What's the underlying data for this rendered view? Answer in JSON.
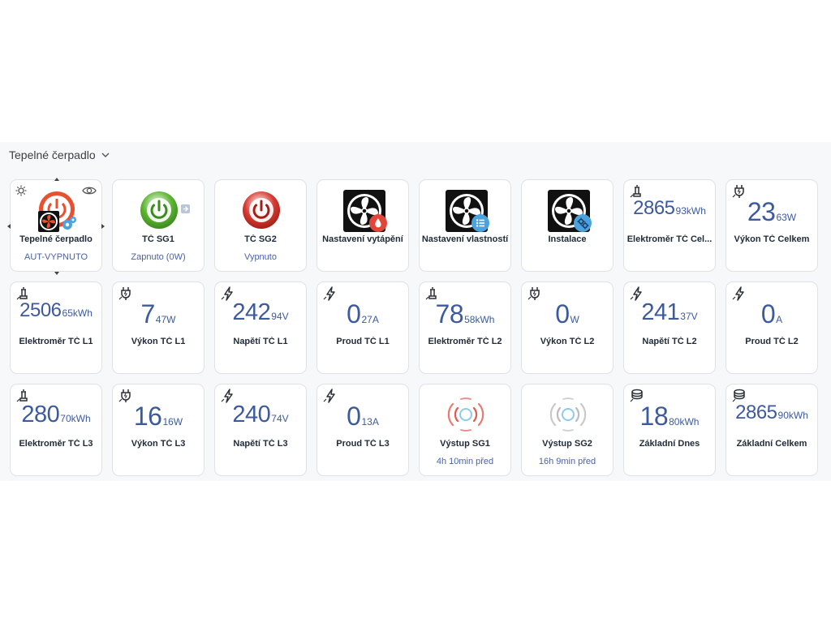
{
  "section": {
    "title": "Tepelné čerpadlo"
  },
  "colors": {
    "value": "#3d5a9e",
    "status": "#4a63a8",
    "label": "#1f2a37",
    "card_border": "#dfe2e7",
    "power_green": "#5cb531",
    "power_red": "#d73a32",
    "signal_red": "#e05b4e",
    "signal_grey": "#b9bcc1",
    "badge_blue": "#4aa3df"
  },
  "cards": [
    {
      "id": "heat-pump",
      "label": "Tepelné čerpadlo",
      "status": "AUT-VYPNUTO",
      "type": "device",
      "icon": "heat-pump-fan-icon"
    },
    {
      "id": "tc-sg1",
      "label": "TČ SG1",
      "status": "Zapnuto (0W)",
      "type": "power",
      "icon": "power-on-icon"
    },
    {
      "id": "tc-sg2",
      "label": "TČ SG2",
      "status": "Vypnuto",
      "type": "power",
      "icon": "power-off-icon"
    },
    {
      "id": "nastaveni-vytapeni",
      "label": "Nastavení vytápění",
      "type": "fan",
      "icon": "fan-heating-icon"
    },
    {
      "id": "nastaveni-vlastnosti",
      "label": "Nastavení vlastností",
      "type": "fan",
      "icon": "fan-list-icon"
    },
    {
      "id": "instalace",
      "label": "Instalace",
      "type": "fan",
      "icon": "fan-gear-icon"
    },
    {
      "id": "elektromer-tc-celkem",
      "label": "Elektroměr TČ Cel...",
      "big": "2865",
      "small": "93kWh",
      "icon": "meter-icon"
    },
    {
      "id": "vykon-tc-celkem",
      "label": "Výkon TČ Celkem",
      "big": "23",
      "small": "63W",
      "icon": "plug-icon"
    },
    {
      "id": "elektromer-tc-l1",
      "label": "Elektroměr TČ L1",
      "big": "2506",
      "small": "65kWh",
      "icon": "meter-icon"
    },
    {
      "id": "vykon-tc-l1",
      "label": "Výkon TČ L1",
      "big": "7",
      "small": "47W",
      "icon": "plug-icon"
    },
    {
      "id": "napeti-tc-l1",
      "label": "Napětí TČ L1",
      "big": "242",
      "small": "94V",
      "icon": "bolt-icon"
    },
    {
      "id": "proud-tc-l1",
      "label": "Proud TČ L1",
      "big": "0",
      "small": "27A",
      "icon": "bolt-icon"
    },
    {
      "id": "elektromer-tc-l2",
      "label": "Elektroměr TČ L2",
      "big": "78",
      "small": "58kWh",
      "icon": "meter-icon"
    },
    {
      "id": "vykon-tc-l2",
      "label": "Výkon TČ L2",
      "big": "0",
      "small": "W",
      "icon": "plug-icon"
    },
    {
      "id": "napeti-tc-l2",
      "label": "Napětí TČ L2",
      "big": "241",
      "small": "37V",
      "icon": "bolt-icon"
    },
    {
      "id": "proud-tc-l2",
      "label": "Proud TČ L2",
      "big": "0",
      "small": "A",
      "icon": "bolt-icon"
    },
    {
      "id": "elektromer-tc-l3",
      "label": "Elektroměr TČ L3",
      "big": "280",
      "small": "70kWh",
      "icon": "meter-icon"
    },
    {
      "id": "vykon-tc-l3",
      "label": "Výkon TČ L3",
      "big": "16",
      "small": "16W",
      "icon": "plug-icon"
    },
    {
      "id": "napeti-tc-l3",
      "label": "Napětí TČ L3",
      "big": "240",
      "small": "74V",
      "icon": "bolt-icon"
    },
    {
      "id": "proud-tc-l3",
      "label": "Proud TČ L3",
      "big": "0",
      "small": "13A",
      "icon": "bolt-icon"
    },
    {
      "id": "vystup-sg1",
      "label": "Výstup SG1",
      "status": "4h 10min před",
      "type": "signal-red",
      "icon": "signal-active-icon"
    },
    {
      "id": "vystup-sg2",
      "label": "Výstup SG2",
      "status": "16h 9min před",
      "type": "signal-grey",
      "icon": "signal-idle-icon"
    },
    {
      "id": "zakladni-dnes",
      "label": "Základní Dnes",
      "big": "18",
      "small": "80kWh",
      "icon": "coins-icon"
    },
    {
      "id": "zakladni-celkem",
      "label": "Základní Celkem",
      "big": "2865",
      "small": "90kWh",
      "icon": "coins-icon"
    }
  ]
}
